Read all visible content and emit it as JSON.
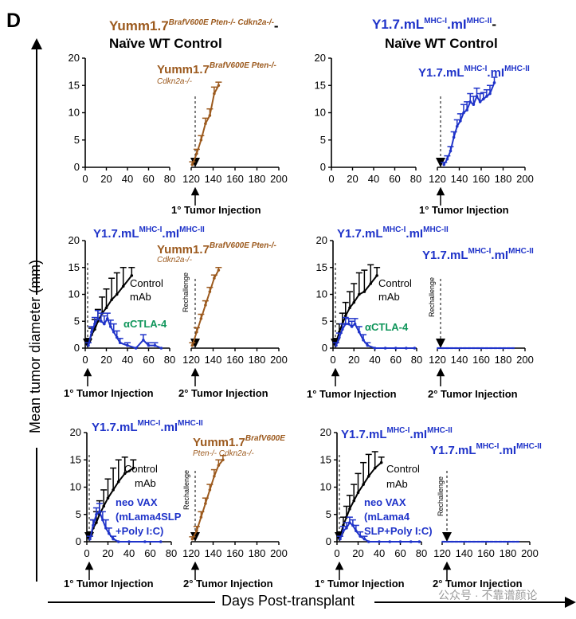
{
  "figure": {
    "panel_label": "D",
    "y_axis_label": "Mean tumor diameter (mm)",
    "x_axis_label": "Days Post-transplant",
    "watermark": "公众号 · 不靠谱颜论",
    "colors": {
      "brown": "#9c5a1e",
      "blue": "#1f33c9",
      "green": "#10965b",
      "black": "#000000"
    },
    "columns": [
      {
        "name": "Yumm1.7",
        "sup": "BrafV600E Pten-/- Cdkn2a-/-",
        "tail": "-",
        "line2": "Naïve WT Control",
        "color": "#9c5a1e"
      },
      {
        "name": "Y1.7.mL",
        "sup": "MHC-I",
        "mid": ".mI",
        "sup2": "MHC-II",
        "tail": "-",
        "line2": "Naïve WT Control",
        "color": "#1f33c9"
      }
    ],
    "labels": {
      "ctrl": "Control",
      "mab": "mAb",
      "actla4": "αCTLA-4",
      "vax_left": [
        "neo VAX",
        "(mLama4SLP",
        "+Poly I:C)"
      ],
      "vax_right": [
        "neo VAX",
        "(mLama4",
        "SLP+Poly I:C)"
      ],
      "rechallenge": "Rechallenge",
      "inj1": "1° Tumor Injection",
      "inj2": "2° Tumor Injection",
      "ymm_name": "Yumm1.7",
      "ymm_sup": "BrafV600E Pten-/-",
      "ymm_sub": "Cdkn2a-/-",
      "ymm_sup_short": "BrafV600E",
      "ymm_sub_long": "Pten-/- Cdkn2a-/-",
      "y17_name": "Y1.7.mL",
      "y17_sup1": "MHC-I",
      "y17_mid": ".mI",
      "y17_sup2": "MHC-II"
    },
    "axes": {
      "y_ticks": [
        0,
        5,
        10,
        15,
        20
      ],
      "x_ticks_primary": [
        0,
        20,
        40,
        60,
        80
      ],
      "x_ticks_secondary": [
        120,
        140,
        160,
        180,
        200
      ]
    }
  },
  "chart_data": [
    {
      "id": "row1-left",
      "type": "line",
      "title": "",
      "xlabel": "",
      "ylabel": "",
      "xlim_primary": [
        0,
        80
      ],
      "xlim_secondary": [
        120,
        200
      ],
      "ylim": [
        0,
        20
      ],
      "series": [
        {
          "name": "Yumm1.7 BrafV600E Pten-/- Cdkn2a-/-",
          "segment": "secondary",
          "x": [
            121,
            125,
            129,
            133,
            137,
            141,
            145
          ],
          "y": [
            0.5,
            2.5,
            5.0,
            8.0,
            9.5,
            13.5,
            15.0
          ],
          "err": [
            0.5,
            0.8,
            0.8,
            1.0,
            1.2,
            1.2,
            0.6
          ]
        }
      ]
    },
    {
      "id": "row1-right",
      "type": "line",
      "title": "",
      "xlabel": "",
      "ylabel": "",
      "xlim_primary": [
        0,
        80
      ],
      "xlim_secondary": [
        120,
        200
      ],
      "ylim": [
        0,
        20
      ],
      "series": [
        {
          "name": "Y1.7.mLMHC-I.mIMHC-II",
          "segment": "secondary",
          "x": [
            126,
            129,
            132,
            135,
            138,
            141,
            144,
            147,
            150,
            153,
            156,
            159,
            162,
            165,
            168,
            172
          ],
          "y": [
            0.5,
            1.5,
            3.0,
            5.5,
            7.5,
            8.5,
            10.0,
            10.5,
            12.0,
            11.5,
            13.0,
            12.0,
            12.5,
            13.0,
            13.5,
            15.5
          ],
          "err": [
            0.4,
            0.6,
            0.8,
            1.0,
            1.2,
            1.3,
            1.5,
            1.5,
            1.5,
            1.5,
            1.5,
            1.5,
            1.2,
            1.2,
            1.5,
            1.0
          ]
        }
      ]
    },
    {
      "id": "row2-left",
      "type": "line",
      "title": "",
      "xlabel": "",
      "ylabel": "",
      "xlim_primary": [
        0,
        80
      ],
      "xlim_secondary": [
        120,
        200
      ],
      "ylim": [
        0,
        20
      ],
      "series": [
        {
          "name": "Control mAb",
          "segment": "primary",
          "x": [
            3,
            6,
            9,
            12,
            16,
            20,
            25,
            30,
            36,
            44
          ],
          "y": [
            1.0,
            2.5,
            3.5,
            5.0,
            6.5,
            7.5,
            9.0,
            10.0,
            11.5,
            13.5
          ],
          "err": [
            0.8,
            1.2,
            1.8,
            2.2,
            3.0,
            3.5,
            4.0,
            4.0,
            3.5,
            1.5
          ]
        },
        {
          "name": "αCTLA-4",
          "segment": "primary",
          "x": [
            3,
            6,
            9,
            12,
            15,
            18,
            21,
            24,
            27,
            30,
            33,
            40,
            48,
            55,
            60,
            66,
            72
          ],
          "y": [
            0.5,
            3.0,
            4.5,
            5.5,
            5.0,
            4.5,
            5.5,
            4.0,
            3.0,
            2.0,
            1.0,
            0.5,
            0.0,
            1.5,
            0.5,
            0.5,
            0.0
          ],
          "err": [
            0.5,
            1.0,
            1.2,
            1.5,
            1.5,
            1.5,
            1.0,
            1.2,
            1.5,
            1.2,
            0.8,
            0.5,
            0.0,
            1.0,
            0.5,
            0.5,
            0.0
          ]
        },
        {
          "name": "Yumm1.7 BrafV600E Pten-/- Cdkn2a-/-",
          "segment": "secondary",
          "x": [
            121,
            125,
            129,
            133,
            137,
            141,
            145
          ],
          "y": [
            0.5,
            3.0,
            5.5,
            8.0,
            10.5,
            13.0,
            14.5
          ],
          "err": [
            0.5,
            0.8,
            0.8,
            0.8,
            0.8,
            0.6,
            0.5
          ]
        }
      ]
    },
    {
      "id": "row2-right",
      "type": "line",
      "title": "",
      "xlabel": "",
      "ylabel": "",
      "xlim_primary": [
        0,
        80
      ],
      "xlim_secondary": [
        120,
        200
      ],
      "ylim": [
        0,
        20
      ],
      "series": [
        {
          "name": "Control mAb",
          "segment": "primary",
          "x": [
            3,
            6,
            9,
            12,
            16,
            20,
            25,
            30,
            36,
            42
          ],
          "y": [
            1.0,
            3.0,
            4.5,
            6.0,
            7.5,
            8.5,
            10.0,
            10.5,
            12.0,
            13.5
          ],
          "err": [
            0.8,
            1.5,
            2.0,
            2.5,
            3.0,
            3.5,
            4.0,
            4.0,
            3.5,
            1.5
          ]
        },
        {
          "name": "αCTLA-4",
          "segment": "primary",
          "x": [
            3,
            6,
            9,
            12,
            15,
            18,
            21,
            25,
            29,
            33,
            40,
            50,
            60,
            70,
            78
          ],
          "y": [
            0.5,
            2.0,
            3.5,
            4.5,
            4.5,
            4.0,
            4.5,
            3.0,
            1.5,
            0.5,
            0.0,
            0.0,
            0.0,
            0.0,
            0.0
          ],
          "err": [
            0.5,
            0.8,
            1.0,
            1.2,
            1.0,
            1.0,
            1.0,
            1.0,
            1.0,
            0.5,
            0.0,
            0.0,
            0.0,
            0.0,
            0.0
          ]
        },
        {
          "name": "Y1.7.mLMHC-I.mIMHC-II",
          "segment": "secondary",
          "x": [
            121,
            125,
            129,
            133,
            137,
            141,
            145,
            149,
            153,
            157,
            161,
            165,
            169,
            173,
            177,
            181,
            185,
            189
          ],
          "y": [
            0,
            0,
            0,
            0,
            0,
            0,
            0,
            0,
            0,
            0,
            0,
            0,
            0,
            0,
            0,
            0,
            0,
            0
          ],
          "err": [
            0,
            0,
            0,
            0,
            0,
            0,
            0,
            0,
            0,
            0,
            0,
            0,
            0,
            0,
            0,
            0,
            0,
            0
          ]
        }
      ]
    },
    {
      "id": "row3-left",
      "type": "line",
      "title": "",
      "xlabel": "",
      "ylabel": "",
      "xlim_primary": [
        0,
        80
      ],
      "xlim_secondary": [
        120,
        200
      ],
      "ylim": [
        0,
        20
      ],
      "series": [
        {
          "name": "Control mAb",
          "segment": "primary",
          "x": [
            3,
            6,
            9,
            12,
            16,
            20,
            25,
            30,
            36,
            44
          ],
          "y": [
            1.0,
            2.5,
            3.5,
            5.0,
            6.5,
            8.0,
            9.5,
            11.0,
            12.5,
            13.5
          ],
          "err": [
            0.8,
            1.5,
            2.0,
            2.5,
            3.0,
            3.5,
            4.0,
            4.0,
            3.0,
            1.5
          ]
        },
        {
          "name": "neo VAX (mLama4SLP+Poly I:C)",
          "segment": "primary",
          "x": [
            3,
            6,
            9,
            12,
            15,
            18,
            21,
            25,
            30,
            40,
            55,
            70
          ],
          "y": [
            0.5,
            3.0,
            5.0,
            5.5,
            4.0,
            2.5,
            1.5,
            0.5,
            0.0,
            0.0,
            0.0,
            0.0
          ],
          "err": [
            0.5,
            1.0,
            1.2,
            1.5,
            1.5,
            1.5,
            1.0,
            0.5,
            0.0,
            0.0,
            0.0,
            0.0
          ]
        },
        {
          "name": "Yumm1.7 BrafV600E Pten-/- Cdkn2a-/-",
          "segment": "secondary",
          "x": [
            121,
            125,
            129,
            133,
            137,
            141,
            145,
            149
          ],
          "y": [
            0.5,
            2.0,
            4.5,
            7.0,
            9.5,
            12.0,
            14.0,
            15.0
          ],
          "err": [
            0.4,
            0.8,
            1.0,
            1.0,
            1.0,
            1.2,
            1.0,
            0.8
          ]
        }
      ]
    },
    {
      "id": "row3-right",
      "type": "line",
      "title": "",
      "xlabel": "",
      "ylabel": "",
      "xlim_primary": [
        0,
        80
      ],
      "xlim_secondary": [
        120,
        200
      ],
      "ylim": [
        0,
        20
      ],
      "series": [
        {
          "name": "Control mAb",
          "segment": "primary",
          "x": [
            3,
            6,
            9,
            12,
            16,
            20,
            25,
            30,
            36,
            42
          ],
          "y": [
            1.0,
            3.0,
            4.5,
            6.0,
            7.5,
            9.0,
            10.5,
            12.0,
            13.5,
            14.5
          ],
          "err": [
            0.8,
            1.5,
            2.0,
            2.5,
            3.0,
            3.5,
            4.0,
            4.0,
            3.0,
            1.0
          ]
        },
        {
          "name": "neo VAX (mLama4SLP+Poly I:C)",
          "segment": "primary",
          "x": [
            3,
            6,
            9,
            12,
            15,
            18,
            22,
            26,
            30,
            40,
            50,
            60,
            70,
            78
          ],
          "y": [
            0.5,
            2.0,
            2.5,
            3.5,
            3.0,
            2.0,
            1.0,
            0.5,
            0.0,
            0.0,
            0.0,
            0.0,
            0.0,
            0.0
          ],
          "err": [
            0.5,
            0.8,
            1.0,
            1.0,
            1.0,
            1.0,
            0.8,
            0.5,
            0.0,
            0.0,
            0.0,
            0.0,
            0.0,
            0.0
          ]
        },
        {
          "name": "Y1.7.mLMHC-I.mIMHC-II",
          "segment": "secondary",
          "x": [
            121,
            125,
            129,
            133,
            137,
            141,
            145,
            149,
            153,
            157,
            161,
            165,
            169,
            173,
            177,
            181,
            185,
            189
          ],
          "y": [
            0,
            0,
            0,
            0,
            0,
            0,
            0,
            0,
            0,
            0,
            0,
            0,
            0,
            0,
            0,
            0,
            0,
            0
          ],
          "err": [
            0,
            0,
            0,
            0,
            0,
            0,
            0,
            0,
            0,
            0,
            0,
            0,
            0,
            0,
            0,
            0,
            0,
            0
          ]
        }
      ]
    }
  ]
}
